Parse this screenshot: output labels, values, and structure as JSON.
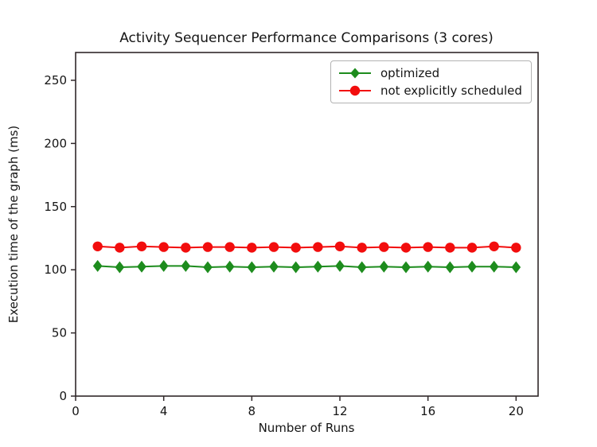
{
  "chart_data": {
    "type": "line",
    "title": "Activity Sequencer Performance Comparisons (3 cores)",
    "xlabel": "Number of Runs",
    "ylabel": "Execution time of the graph (ms)",
    "xlim": [
      0,
      21
    ],
    "ylim": [
      0,
      272
    ],
    "xticks": [
      0,
      4,
      8,
      12,
      16,
      20
    ],
    "yticks": [
      0,
      50,
      100,
      150,
      200,
      250
    ],
    "grid": false,
    "legend_position": "upper right",
    "x": [
      1,
      2,
      3,
      4,
      5,
      6,
      7,
      8,
      9,
      10,
      11,
      12,
      13,
      14,
      15,
      16,
      17,
      18,
      19,
      20
    ],
    "series": [
      {
        "name": "optimized",
        "marker": "diamond",
        "color": "#1d8c1d",
        "values": [
          103,
          102,
          102.5,
          103,
          103,
          102,
          102.5,
          102,
          102.5,
          102,
          102.5,
          103,
          102,
          102.5,
          102,
          102.5,
          102,
          102.5,
          102.5,
          102
        ]
      },
      {
        "name": "not explicitly scheduled",
        "marker": "circle",
        "color": "#f20d0d",
        "values": [
          118.5,
          117.5,
          118.5,
          118,
          117.5,
          118,
          118,
          117.5,
          118,
          117.5,
          118,
          118.5,
          117.5,
          118,
          117.5,
          118,
          117.5,
          117.5,
          118.5,
          117.5
        ]
      }
    ],
    "axis_color": "#30282a",
    "text_color": "#151515"
  }
}
